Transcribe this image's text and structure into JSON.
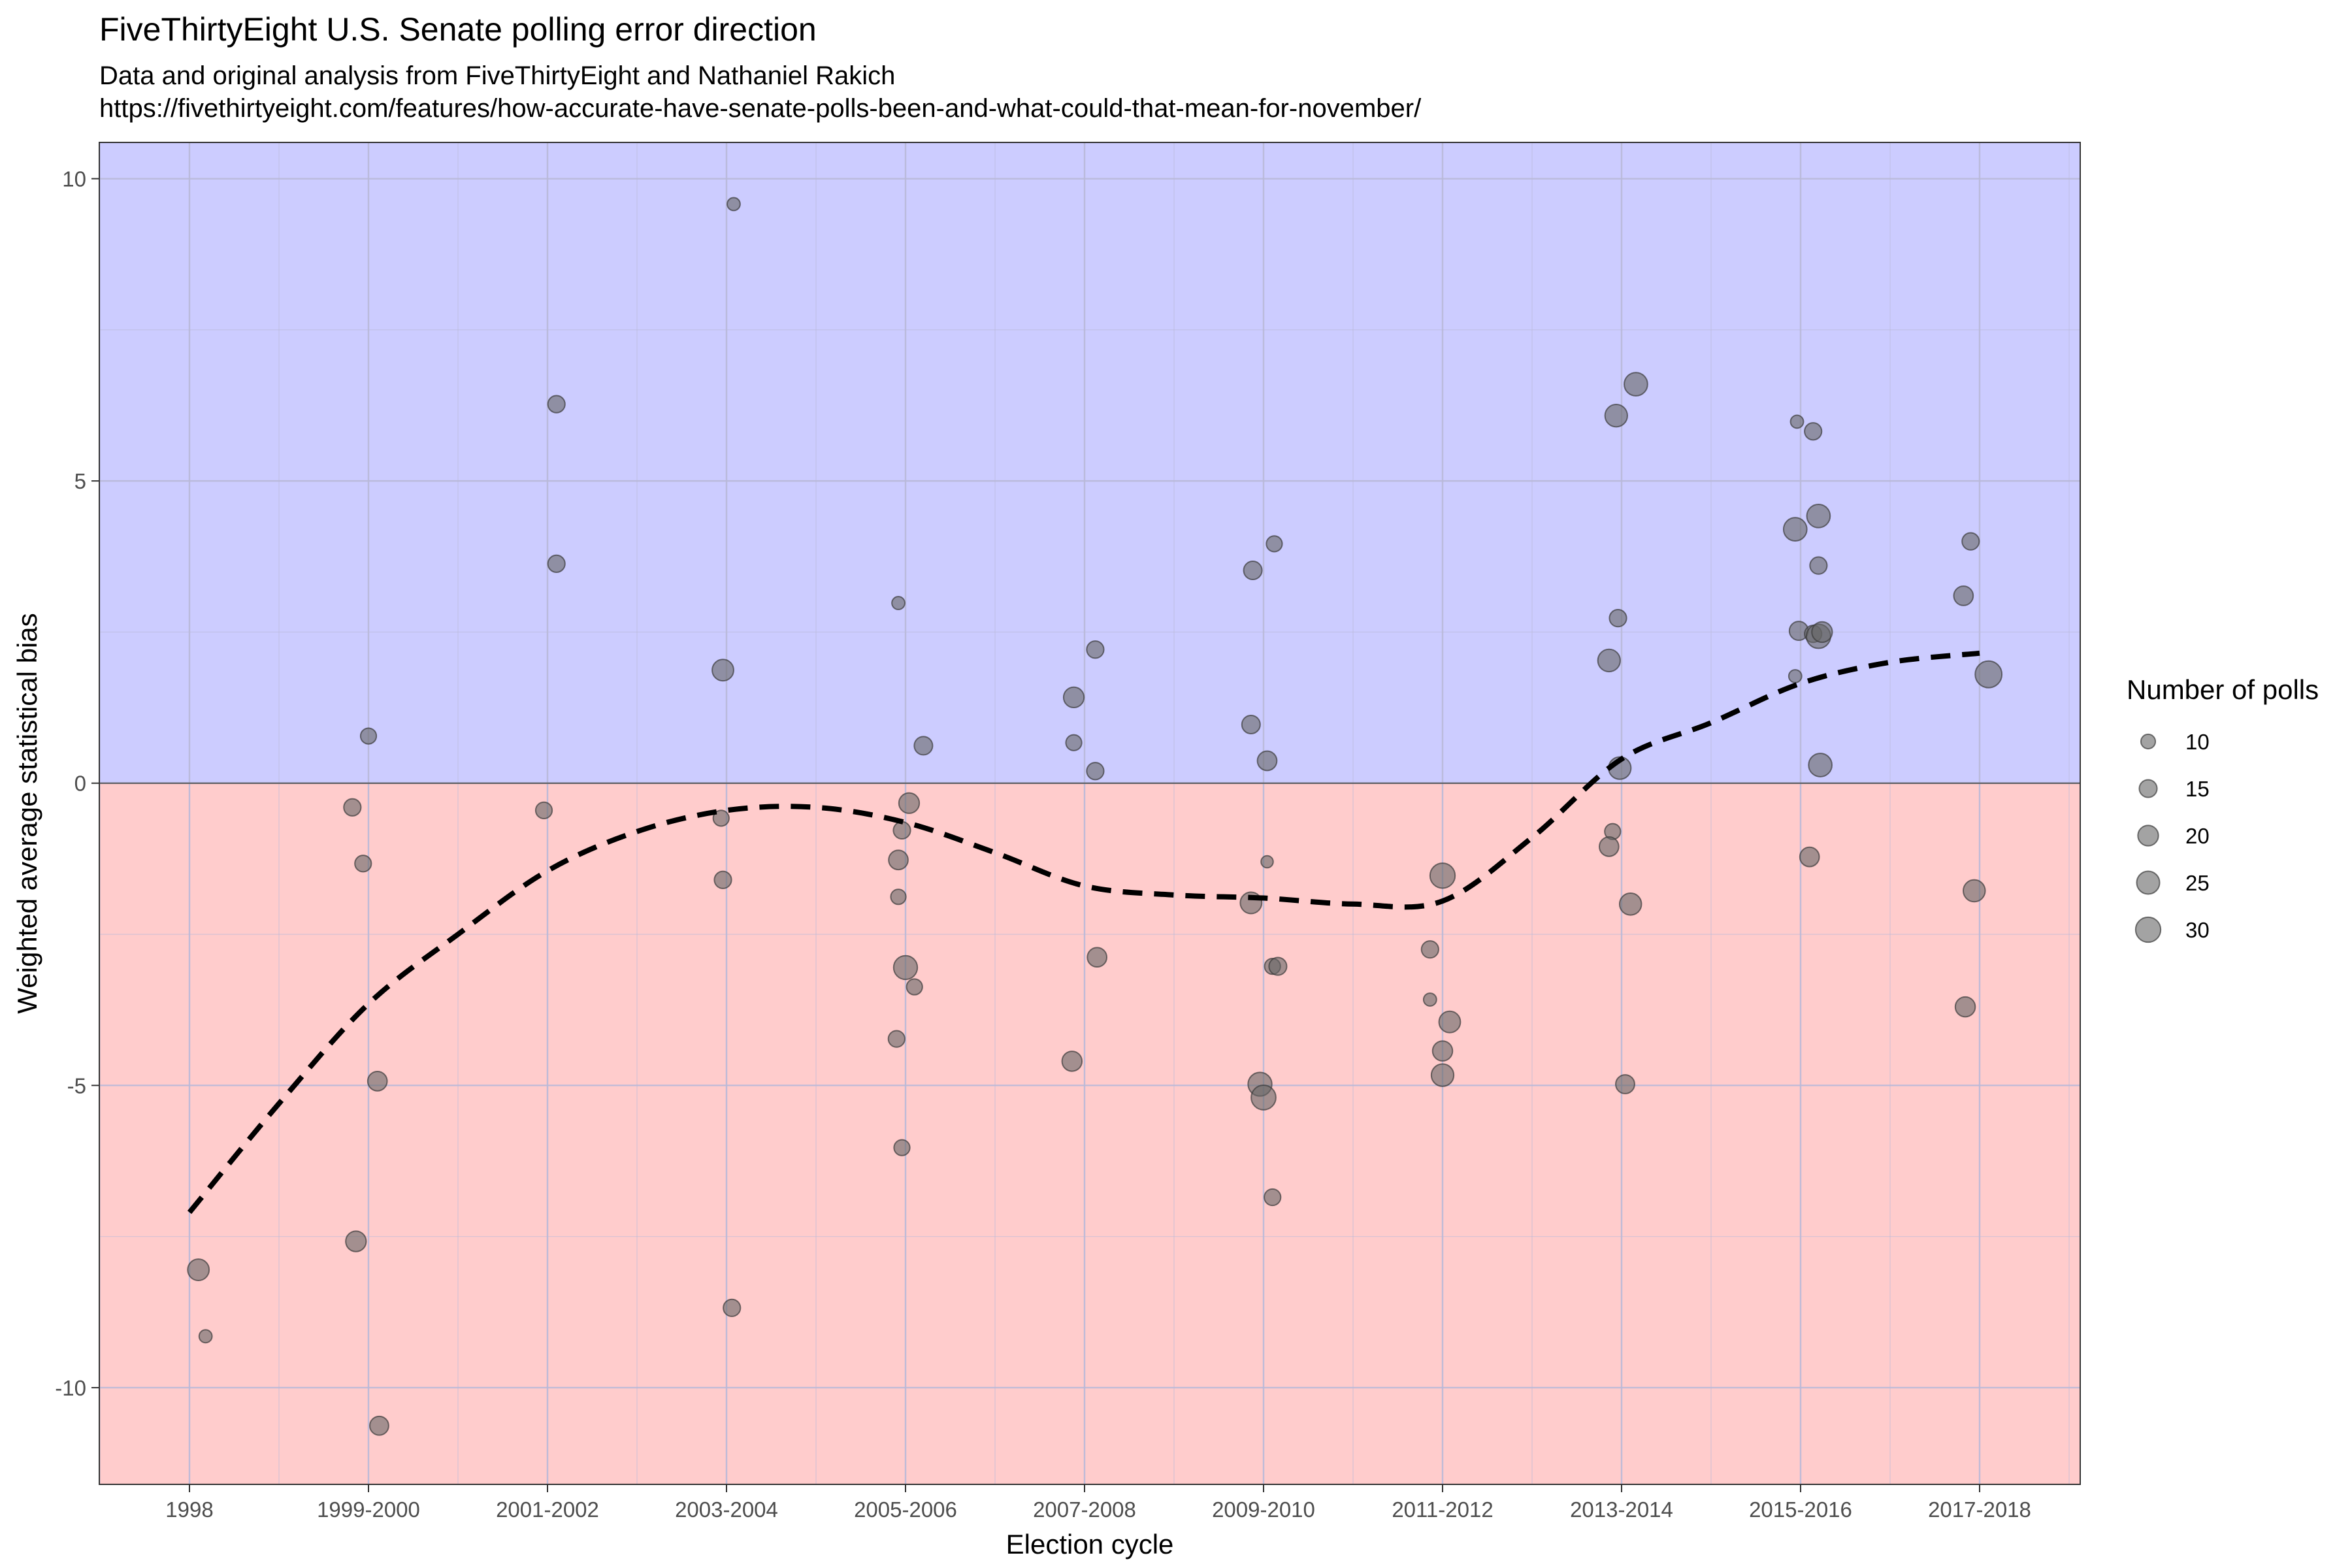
{
  "chart_data": {
    "type": "scatter",
    "title": "FiveThirtyEight U.S. Senate polling error direction",
    "subtitle": "Data and original analysis from FiveThirtyEight and Nathaniel Rakich",
    "subtitle2": "https://fivethirtyeight.com/features/how-accurate-have-senate-polls-been-and-what-could-that-mean-for-november/",
    "xlabel": "Election cycle",
    "ylabel": "Weighted average statistical bias",
    "categories": [
      "1998",
      "1999-2000",
      "2001-2002",
      "2003-2004",
      "2005-2006",
      "2007-2008",
      "2009-2010",
      "2011-2012",
      "2013-2014",
      "2015-2016",
      "2017-2018"
    ],
    "ylim": [
      -11.6,
      10.6
    ],
    "yticks": [
      -10,
      -5,
      0,
      5,
      10
    ],
    "ytick_labels": [
      "-10",
      "-5",
      "0",
      "5",
      "10"
    ],
    "grid": true,
    "background_positive": "#ccccff",
    "background_negative": "#ffcccc",
    "point_color": "#666666",
    "trend_color": "#000000",
    "legend": {
      "title": "Number of polls",
      "placement": "right",
      "sizes": [
        10,
        15,
        20,
        25,
        30
      ],
      "labels": [
        "10",
        "15",
        "20",
        "25",
        "30"
      ]
    },
    "points": [
      {
        "x": 0.05,
        "y": -8.05,
        "n": 22
      },
      {
        "x": 0.09,
        "y": -9.15,
        "n": 8
      },
      {
        "x": 0.91,
        "y": -0.4,
        "n": 14
      },
      {
        "x": 0.97,
        "y": -1.33,
        "n": 13
      },
      {
        "x": 1.0,
        "y": 0.78,
        "n": 12
      },
      {
        "x": 1.05,
        "y": -4.93,
        "n": 18
      },
      {
        "x": 0.93,
        "y": -7.58,
        "n": 20
      },
      {
        "x": 1.06,
        "y": -10.63,
        "n": 17
      },
      {
        "x": 2.05,
        "y": 6.27,
        "n": 14
      },
      {
        "x": 2.05,
        "y": 3.63,
        "n": 14
      },
      {
        "x": 1.98,
        "y": -0.45,
        "n": 13
      },
      {
        "x": 2.98,
        "y": 1.87,
        "n": 22
      },
      {
        "x": 3.04,
        "y": 9.58,
        "n": 8
      },
      {
        "x": 2.97,
        "y": -0.58,
        "n": 12
      },
      {
        "x": 2.98,
        "y": -1.6,
        "n": 14
      },
      {
        "x": 3.03,
        "y": -8.68,
        "n": 14
      },
      {
        "x": 3.96,
        "y": 2.98,
        "n": 8
      },
      {
        "x": 4.1,
        "y": 0.62,
        "n": 16
      },
      {
        "x": 4.02,
        "y": -0.33,
        "n": 20
      },
      {
        "x": 3.98,
        "y": -0.78,
        "n": 14
      },
      {
        "x": 3.96,
        "y": -1.27,
        "n": 18
      },
      {
        "x": 3.96,
        "y": -1.88,
        "n": 11
      },
      {
        "x": 4.0,
        "y": -3.05,
        "n": 27
      },
      {
        "x": 4.05,
        "y": -3.37,
        "n": 12
      },
      {
        "x": 3.95,
        "y": -4.23,
        "n": 13
      },
      {
        "x": 3.98,
        "y": -6.03,
        "n": 12
      },
      {
        "x": 4.94,
        "y": 1.42,
        "n": 20
      },
      {
        "x": 5.06,
        "y": 2.21,
        "n": 14
      },
      {
        "x": 4.94,
        "y": 0.67,
        "n": 12
      },
      {
        "x": 5.06,
        "y": 0.2,
        "n": 14
      },
      {
        "x": 5.07,
        "y": -2.88,
        "n": 18
      },
      {
        "x": 4.93,
        "y": -4.6,
        "n": 19
      },
      {
        "x": 5.94,
        "y": 3.52,
        "n": 16
      },
      {
        "x": 6.06,
        "y": 3.96,
        "n": 12
      },
      {
        "x": 5.93,
        "y": 0.97,
        "n": 16
      },
      {
        "x": 6.02,
        "y": 0.37,
        "n": 18
      },
      {
        "x": 6.02,
        "y": -1.3,
        "n": 7
      },
      {
        "x": 5.93,
        "y": -1.98,
        "n": 22
      },
      {
        "x": 6.05,
        "y": -3.03,
        "n": 12
      },
      {
        "x": 6.08,
        "y": -3.03,
        "n": 15
      },
      {
        "x": 5.98,
        "y": -4.98,
        "n": 27
      },
      {
        "x": 6.0,
        "y": -5.2,
        "n": 29
      },
      {
        "x": 6.05,
        "y": -6.85,
        "n": 13
      },
      {
        "x": 7.0,
        "y": -1.53,
        "n": 30
      },
      {
        "x": 6.93,
        "y": -2.75,
        "n": 14
      },
      {
        "x": 6.93,
        "y": -3.58,
        "n": 8
      },
      {
        "x": 7.04,
        "y": -3.95,
        "n": 22
      },
      {
        "x": 7.0,
        "y": -4.43,
        "n": 19
      },
      {
        "x": 7.0,
        "y": -4.83,
        "n": 24
      },
      {
        "x": 7.97,
        "y": 6.08,
        "n": 24
      },
      {
        "x": 8.08,
        "y": 6.6,
        "n": 26
      },
      {
        "x": 7.98,
        "y": 2.73,
        "n": 14
      },
      {
        "x": 7.93,
        "y": 2.03,
        "n": 24
      },
      {
        "x": 7.99,
        "y": 0.25,
        "n": 24
      },
      {
        "x": 7.95,
        "y": -0.8,
        "n": 12
      },
      {
        "x": 7.93,
        "y": -1.05,
        "n": 18
      },
      {
        "x": 8.05,
        "y": -2.0,
        "n": 23
      },
      {
        "x": 8.02,
        "y": -4.98,
        "n": 17
      },
      {
        "x": 8.98,
        "y": 5.98,
        "n": 8
      },
      {
        "x": 9.07,
        "y": 5.82,
        "n": 14
      },
      {
        "x": 8.97,
        "y": 4.2,
        "n": 26
      },
      {
        "x": 9.1,
        "y": 4.42,
        "n": 26
      },
      {
        "x": 9.1,
        "y": 3.6,
        "n": 14
      },
      {
        "x": 8.99,
        "y": 2.52,
        "n": 17
      },
      {
        "x": 9.07,
        "y": 2.47,
        "n": 14
      },
      {
        "x": 9.1,
        "y": 2.43,
        "n": 28
      },
      {
        "x": 9.12,
        "y": 2.5,
        "n": 20
      },
      {
        "x": 8.97,
        "y": 1.77,
        "n": 8
      },
      {
        "x": 9.11,
        "y": 0.3,
        "n": 26
      },
      {
        "x": 9.05,
        "y": -1.22,
        "n": 18
      },
      {
        "x": 9.95,
        "y": 4.0,
        "n": 14
      },
      {
        "x": 9.91,
        "y": 3.1,
        "n": 18
      },
      {
        "x": 10.05,
        "y": 1.8,
        "n": 34
      },
      {
        "x": 9.97,
        "y": -1.78,
        "n": 23
      },
      {
        "x": 9.92,
        "y": -3.7,
        "n": 19
      }
    ],
    "trend": {
      "style": "dashed",
      "x": [
        0.0,
        0.5,
        1.0,
        1.5,
        2.0,
        2.5,
        3.0,
        3.5,
        4.0,
        4.5,
        5.0,
        5.5,
        6.0,
        6.5,
        7.0,
        7.5,
        8.0,
        8.5,
        9.0,
        9.5,
        10.0
      ],
      "y": [
        -7.1,
        -5.3,
        -3.65,
        -2.5,
        -1.45,
        -0.8,
        -0.45,
        -0.4,
        -0.65,
        -1.15,
        -1.7,
        -1.85,
        -1.9,
        -2.0,
        -1.95,
        -0.9,
        0.4,
        1.0,
        1.65,
        2.0,
        2.15
      ]
    }
  }
}
